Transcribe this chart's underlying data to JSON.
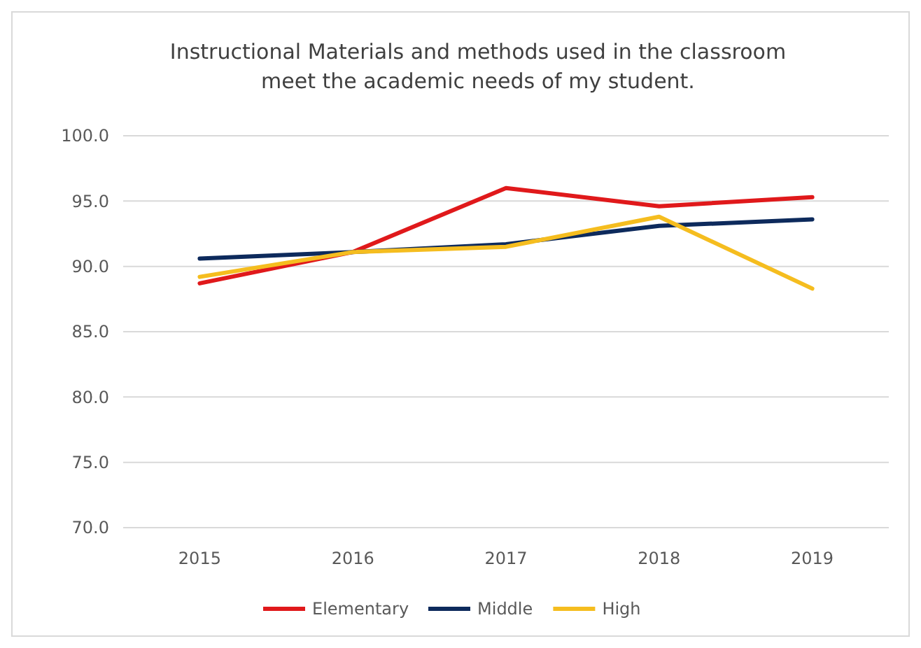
{
  "chart_data": {
    "type": "line",
    "title": "Instructional Materials and methods used in the classroom\nmeet the academic needs of my student.",
    "categories": [
      "2015",
      "2016",
      "2017",
      "2018",
      "2019"
    ],
    "series": [
      {
        "name": "Elementary",
        "color": "#e0191b",
        "values": [
          88.7,
          91.1,
          96.0,
          94.6,
          95.3
        ]
      },
      {
        "name": "Middle",
        "color": "#0d2a5c",
        "values": [
          90.6,
          91.1,
          91.7,
          93.1,
          93.6
        ]
      },
      {
        "name": "High",
        "color": "#f5bd1f",
        "values": [
          89.2,
          91.1,
          91.5,
          93.8,
          88.3
        ]
      }
    ],
    "ylim": [
      70,
      100
    ],
    "yticks": [
      {
        "value": 70,
        "label": "70.0"
      },
      {
        "value": 75,
        "label": "75.0"
      },
      {
        "value": 80,
        "label": "80.0"
      },
      {
        "value": 85,
        "label": "85.0"
      },
      {
        "value": 90,
        "label": "90.0"
      },
      {
        "value": 95,
        "label": "95.0"
      },
      {
        "value": 100,
        "label": "100.0"
      }
    ],
    "grid": "y",
    "legend": "bottom",
    "marker": "none",
    "line_style": "solid"
  }
}
